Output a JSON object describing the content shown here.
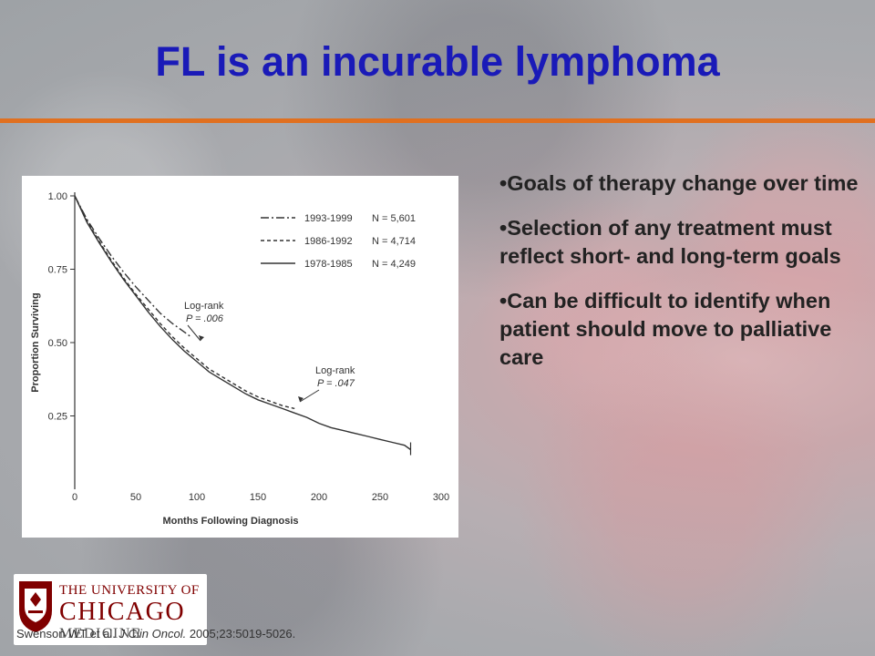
{
  "slide": {
    "title": "FL is an incurable lymphoma",
    "bullets": [
      "Goals of therapy change over time",
      "Selection of any treatment must reflect short- and long-term goals",
      "Can be difficult to identify when patient should move to palliative care"
    ],
    "bullet_marker": "•",
    "accent_color": "#e07020",
    "title_color": "#1a1ab8"
  },
  "logo": {
    "line1": "THE UNIVERSITY OF",
    "line2": "CHICAGO",
    "line3": "MEDICINE",
    "color": "#800000",
    "icon": "university-shield-icon"
  },
  "citation": {
    "authors": "Swenson WT et al.",
    "journal": "J Clin Oncol.",
    "details": "2005;23:5019-5026."
  },
  "chart_data": {
    "type": "line",
    "xlabel": "Months Following Diagnosis",
    "ylabel": "Proportion Surviving",
    "xlim": [
      0,
      300
    ],
    "ylim": [
      0,
      1
    ],
    "xticks": [
      0,
      50,
      100,
      150,
      200,
      250,
      300
    ],
    "yticks": [
      0.25,
      0.5,
      0.75,
      1.0
    ],
    "ytick_labels": [
      "0.25",
      "0.50",
      "0.75",
      "1.00"
    ],
    "grid": false,
    "legend_placement": "top-right",
    "series": [
      {
        "name": "1993-1999",
        "n_label": "N = 5,601",
        "style": "dash-dot",
        "x": [
          0,
          10,
          20,
          30,
          40,
          50,
          60,
          70,
          80,
          90,
          95
        ],
        "y": [
          1.0,
          0.92,
          0.855,
          0.795,
          0.74,
          0.69,
          0.645,
          0.6,
          0.565,
          0.535,
          0.52
        ]
      },
      {
        "name": "1986-1992",
        "n_label": "N = 4,714",
        "style": "dashed",
        "x": [
          0,
          10,
          20,
          30,
          40,
          50,
          60,
          70,
          80,
          90,
          100,
          110,
          120,
          130,
          140,
          150,
          160,
          170,
          180
        ],
        "y": [
          1.0,
          0.915,
          0.845,
          0.78,
          0.72,
          0.665,
          0.615,
          0.565,
          0.52,
          0.48,
          0.445,
          0.41,
          0.385,
          0.36,
          0.335,
          0.315,
          0.3,
          0.285,
          0.275
        ]
      },
      {
        "name": "1978-1985",
        "n_label": "N = 4,249",
        "style": "solid",
        "x": [
          0,
          10,
          20,
          30,
          40,
          50,
          60,
          70,
          80,
          90,
          100,
          110,
          120,
          130,
          140,
          150,
          160,
          170,
          180,
          190,
          200,
          210,
          220,
          230,
          240,
          250,
          260,
          270,
          275
        ],
        "y": [
          1.0,
          0.91,
          0.84,
          0.775,
          0.715,
          0.66,
          0.605,
          0.555,
          0.51,
          0.47,
          0.435,
          0.4,
          0.375,
          0.35,
          0.325,
          0.305,
          0.29,
          0.275,
          0.26,
          0.245,
          0.225,
          0.21,
          0.2,
          0.19,
          0.18,
          0.17,
          0.16,
          0.15,
          0.135
        ]
      }
    ],
    "annotations": [
      {
        "label_line1": "Log-rank",
        "label_line2": "P = .006",
        "x": 100,
        "y": 0.53
      },
      {
        "label_line1": "Log-rank",
        "label_line2": "P = .047",
        "x": 180,
        "y": 0.28
      }
    ]
  }
}
